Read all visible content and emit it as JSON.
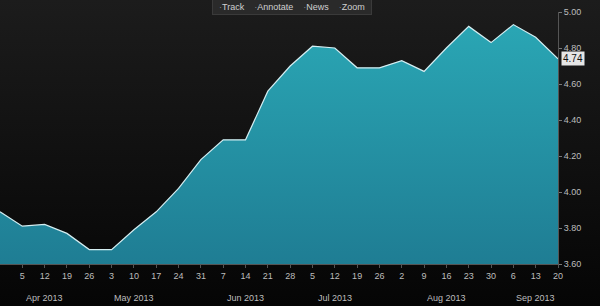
{
  "toolbar": [
    "Track",
    "Annotate",
    "News",
    "Zoom"
  ],
  "chart_data": {
    "type": "area",
    "categories": [
      null,
      "5",
      "12",
      "19",
      "26",
      "3",
      "10",
      "17",
      "24",
      "31",
      "7",
      "14",
      "21",
      "28",
      "5",
      "12",
      "19",
      "26",
      "2",
      "9",
      "16",
      "23",
      "30",
      "6",
      "13",
      "20"
    ],
    "values": [
      3.89,
      3.81,
      3.82,
      3.77,
      3.68,
      3.68,
      3.79,
      3.89,
      4.02,
      4.18,
      4.29,
      4.29,
      4.56,
      4.7,
      4.81,
      4.8,
      4.69,
      4.69,
      4.73,
      4.67,
      4.8,
      4.92,
      4.83,
      4.93,
      4.86,
      4.74
    ],
    "color": "#2aa6b4",
    "ylim": [
      3.6,
      5.0
    ],
    "yticks": [
      {
        "value": 3.6,
        "label": "3.60"
      },
      {
        "value": 3.8,
        "label": "3.80"
      },
      {
        "value": 4.0,
        "label": "4.00"
      },
      {
        "value": 4.2,
        "label": "4.20"
      },
      {
        "value": 4.4,
        "label": "4.40"
      },
      {
        "value": 4.6,
        "label": "4.60"
      },
      {
        "value": 4.8,
        "label": "4.80"
      },
      {
        "value": 5.0,
        "label": "5.00"
      }
    ],
    "grid": false,
    "annotations": [
      {
        "text": "Apr 2013",
        "at": 2
      },
      {
        "text": "May 2013",
        "at": 6
      },
      {
        "text": "Jun 2013",
        "at": 11
      },
      {
        "text": "Jul 2013",
        "at": 15
      },
      {
        "text": "Aug 2013",
        "at": 20
      },
      {
        "text": "Sep 2013",
        "at": 24
      }
    ],
    "last_value_label": {
      "text": "4.74",
      "at": 25
    }
  }
}
